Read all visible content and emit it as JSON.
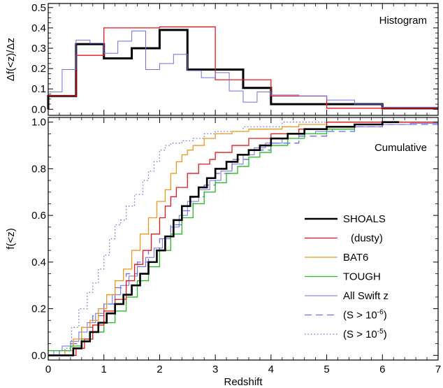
{
  "chart_data": [
    {
      "type": "line",
      "panel": "top",
      "title": "Histogram",
      "xlabel": "",
      "ylabel": "Δf(<z)/Δz",
      "xlim": [
        0,
        7
      ],
      "ylim": [
        -0.03,
        0.52
      ],
      "y_ticks": [
        0.0,
        0.1,
        0.2,
        0.3,
        0.4,
        0.5
      ],
      "y_tick_labels": [
        "0.0",
        "0.1",
        "0.2",
        "0.3",
        "0.4",
        "0.5"
      ],
      "step": true,
      "grid": false,
      "series": [
        {
          "name": "SHOALS",
          "color": "#000000",
          "width": 3,
          "dash": "",
          "edges": [
            0,
            0.5,
            1,
            1.5,
            2,
            2.5,
            3,
            3.5,
            4,
            4.5,
            5,
            5.5,
            6,
            7
          ],
          "values": [
            0.065,
            0.32,
            0.25,
            0.3,
            0.39,
            0.195,
            0.195,
            0.105,
            0.025,
            0.025,
            0.025,
            0.025,
            0.005
          ]
        },
        {
          "name": "(dusty)",
          "color": "#e8161b",
          "width": 1.3,
          "dash": "",
          "edges": [
            0,
            0.5,
            1,
            2,
            3,
            4,
            5,
            7
          ],
          "values": [
            0.065,
            0.265,
            0.4,
            0.405,
            0.145,
            0.065,
            0.005
          ]
        },
        {
          "name": "All Swift z",
          "color": "#6e6ee6",
          "width": 1,
          "dash": "",
          "edges": [
            0,
            0.25,
            0.5,
            0.75,
            1,
            1.25,
            1.5,
            1.75,
            2,
            2.25,
            2.5,
            2.75,
            3,
            3.25,
            3.5,
            3.75,
            4,
            4.5,
            5,
            5.5,
            6,
            7
          ],
          "values": [
            0.085,
            0.195,
            0.34,
            0.325,
            0.275,
            0.335,
            0.385,
            0.195,
            0.225,
            0.27,
            0.19,
            0.155,
            0.18,
            0.09,
            0.035,
            0.085,
            0.07,
            0.065,
            0.045,
            0.025,
            0.01
          ]
        }
      ]
    },
    {
      "type": "line",
      "panel": "bottom",
      "title": "Cumulative",
      "xlabel": "Redshift",
      "ylabel": "f(<z)",
      "xlim": [
        0,
        7
      ],
      "ylim": [
        -0.02,
        1.02
      ],
      "x_ticks": [
        0,
        1,
        2,
        3,
        4,
        5,
        6,
        7
      ],
      "x_tick_labels": [
        "0",
        "1",
        "2",
        "3",
        "4",
        "5",
        "6",
        "7"
      ],
      "y_ticks": [
        0.0,
        0.2,
        0.4,
        0.6,
        0.8,
        1.0
      ],
      "y_tick_labels": [
        "0.0",
        "0.2",
        "0.4",
        "0.6",
        "0.8",
        "1.0"
      ],
      "step": true,
      "grid": false,
      "legend_position": "lower-right",
      "series": [
        {
          "name": "(S > 10⁻⁵)",
          "legend_base": "(S > 10",
          "legend_exp": "-5",
          "color": "#6e6ee6",
          "width": 1.3,
          "dash": "1.5 3",
          "x": [
            0,
            0.3,
            0.42,
            0.55,
            0.7,
            0.8,
            0.9,
            1.0,
            1.1,
            1.2,
            1.3,
            1.4,
            1.55,
            1.7,
            1.8,
            1.9,
            2.0,
            2.1,
            2.2,
            2.4,
            2.6,
            2.8,
            3.0,
            3.5,
            4.2,
            7
          ],
          "y": [
            0.0,
            0.03,
            0.12,
            0.2,
            0.27,
            0.31,
            0.37,
            0.43,
            0.5,
            0.56,
            0.58,
            0.64,
            0.69,
            0.75,
            0.79,
            0.83,
            0.88,
            0.9,
            0.91,
            0.92,
            0.93,
            0.95,
            0.96,
            0.98,
            1.0,
            1.0
          ]
        },
        {
          "name": "(S > 10⁻⁶)",
          "legend_base": "(S > 10",
          "legend_exp": "-6",
          "color": "#6e6ee6",
          "width": 1.3,
          "dash": "10 6",
          "x": [
            0,
            0.2,
            0.4,
            0.6,
            0.8,
            1.0,
            1.2,
            1.4,
            1.6,
            1.8,
            2.0,
            2.2,
            2.4,
            2.6,
            2.8,
            3.0,
            3.3,
            3.6,
            4.0,
            4.5,
            5.0,
            5.5,
            6.0,
            7
          ],
          "y": [
            0.0,
            0.02,
            0.05,
            0.12,
            0.17,
            0.22,
            0.29,
            0.35,
            0.4,
            0.45,
            0.5,
            0.56,
            0.62,
            0.68,
            0.73,
            0.78,
            0.84,
            0.88,
            0.91,
            0.94,
            0.96,
            0.98,
            0.99,
            1.0
          ]
        },
        {
          "name": "All Swift z",
          "color": "#6e6ee6",
          "width": 1,
          "dash": "",
          "x": [
            0,
            0.1,
            0.25,
            0.4,
            0.55,
            0.7,
            0.85,
            1.0,
            1.15,
            1.3,
            1.45,
            1.6,
            1.75,
            1.9,
            2.05,
            2.2,
            2.35,
            2.5,
            2.7,
            2.9,
            3.1,
            3.3,
            3.5,
            3.7,
            3.9,
            4.2,
            4.5,
            4.8,
            5.1,
            5.5,
            6.0,
            6.5,
            7
          ],
          "y": [
            0.0,
            0.02,
            0.04,
            0.06,
            0.1,
            0.14,
            0.18,
            0.22,
            0.26,
            0.3,
            0.34,
            0.38,
            0.42,
            0.46,
            0.5,
            0.55,
            0.6,
            0.66,
            0.71,
            0.75,
            0.79,
            0.82,
            0.86,
            0.89,
            0.91,
            0.93,
            0.95,
            0.96,
            0.97,
            0.98,
            0.99,
            0.995,
            1.0
          ]
        },
        {
          "name": "BAT6",
          "color": "#f0961e",
          "width": 1.3,
          "dash": "",
          "x": [
            0,
            0.3,
            0.45,
            0.6,
            0.75,
            0.9,
            1.05,
            1.2,
            1.35,
            1.5,
            1.65,
            1.8,
            1.95,
            2.1,
            2.2,
            2.3,
            2.4,
            2.5,
            2.6,
            2.8,
            3.0,
            3.3,
            3.6,
            3.9,
            4.2,
            4.5,
            5.0,
            5.5,
            7
          ],
          "y": [
            0.0,
            0.02,
            0.07,
            0.12,
            0.15,
            0.2,
            0.26,
            0.32,
            0.37,
            0.45,
            0.52,
            0.59,
            0.66,
            0.71,
            0.78,
            0.83,
            0.86,
            0.88,
            0.9,
            0.93,
            0.95,
            0.96,
            0.97,
            0.97,
            0.98,
            0.99,
            1.0,
            1.0,
            1.0
          ]
        },
        {
          "name": "TOUGH",
          "color": "#22bb22",
          "width": 1.3,
          "dash": "",
          "x": [
            0,
            0.4,
            0.6,
            0.8,
            1.0,
            1.2,
            1.4,
            1.6,
            1.8,
            2.0,
            2.2,
            2.4,
            2.6,
            2.8,
            3.0,
            3.2,
            3.4,
            3.6,
            3.8,
            4.0,
            4.3,
            4.6,
            5.0,
            5.5,
            6.0,
            7
          ],
          "y": [
            0.02,
            0.04,
            0.07,
            0.1,
            0.14,
            0.19,
            0.25,
            0.32,
            0.38,
            0.45,
            0.52,
            0.59,
            0.65,
            0.7,
            0.74,
            0.78,
            0.81,
            0.85,
            0.87,
            0.9,
            0.93,
            0.95,
            0.97,
            0.99,
            1.0,
            1.0
          ]
        },
        {
          "name": "(dusty)",
          "color": "#e8161b",
          "width": 1.3,
          "dash": "",
          "x": [
            0,
            0.5,
            0.65,
            0.8,
            1.0,
            1.2,
            1.4,
            1.55,
            1.7,
            1.85,
            2.0,
            2.1,
            2.2,
            2.3,
            2.5,
            2.7,
            2.9,
            3.0,
            3.3,
            3.6,
            4.0,
            4.5,
            5.0,
            7
          ],
          "y": [
            0.0,
            0.03,
            0.07,
            0.13,
            0.19,
            0.24,
            0.32,
            0.39,
            0.45,
            0.52,
            0.59,
            0.64,
            0.68,
            0.72,
            0.78,
            0.82,
            0.84,
            0.87,
            0.9,
            0.93,
            0.95,
            0.97,
            1.0,
            1.0
          ]
        },
        {
          "name": "SHOALS",
          "color": "#000000",
          "width": 2.6,
          "dash": "",
          "x": [
            0,
            0.45,
            0.6,
            0.75,
            0.9,
            1.05,
            1.2,
            1.35,
            1.5,
            1.65,
            1.8,
            1.95,
            2.1,
            2.25,
            2.4,
            2.55,
            2.7,
            2.85,
            3.0,
            3.2,
            3.4,
            3.6,
            3.8,
            4.0,
            4.3,
            4.6,
            5.0,
            5.5,
            6.0,
            6.3
          ],
          "y": [
            0.0,
            0.03,
            0.06,
            0.1,
            0.14,
            0.18,
            0.22,
            0.26,
            0.3,
            0.35,
            0.4,
            0.45,
            0.51,
            0.58,
            0.64,
            0.68,
            0.72,
            0.76,
            0.8,
            0.83,
            0.86,
            0.88,
            0.9,
            0.93,
            0.95,
            0.97,
            0.98,
            0.99,
            1.0,
            1.0
          ]
        }
      ],
      "legend": [
        "SHOALS",
        "(dusty)",
        "BAT6",
        "TOUGH",
        "All Swift z",
        "(S > 10⁻⁶)",
        "(S > 10⁻⁵)"
      ]
    }
  ]
}
